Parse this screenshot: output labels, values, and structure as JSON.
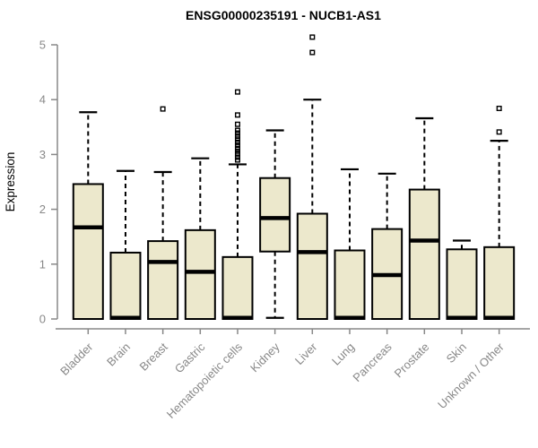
{
  "chart_data": {
    "type": "boxplot",
    "title": "ENSG00000235191 - NUCB1-AS1",
    "xlabel": "",
    "ylabel": "Expression",
    "ylim": [
      0,
      5.2
    ],
    "yticks": [
      0,
      1,
      2,
      3,
      4,
      5
    ],
    "grid": false,
    "legend": "none",
    "categories": [
      "Bladder",
      "Brain",
      "Breast",
      "Gastric",
      "Hematopoietic cells",
      "Kidney",
      "Liver",
      "Lung",
      "Pancreas",
      "Prostate",
      "Skin",
      "Unknown / Other"
    ],
    "series": [
      {
        "name": "Bladder",
        "whisker_low": 0,
        "q1": 0,
        "median": 1.67,
        "q3": 2.46,
        "whisker_high": 3.77,
        "outliers": []
      },
      {
        "name": "Brain",
        "whisker_low": 0,
        "q1": 0,
        "median": 0.02,
        "q3": 1.21,
        "whisker_high": 2.7,
        "outliers": []
      },
      {
        "name": "Breast",
        "whisker_low": 0,
        "q1": 0,
        "median": 1.04,
        "q3": 1.42,
        "whisker_high": 2.68,
        "outliers": [
          3.83
        ]
      },
      {
        "name": "Gastric",
        "whisker_low": 0,
        "q1": 0,
        "median": 0.86,
        "q3": 1.62,
        "whisker_high": 2.93,
        "outliers": []
      },
      {
        "name": "Hematopoietic cells",
        "whisker_low": 0,
        "q1": 0,
        "median": 0.02,
        "q3": 1.13,
        "whisker_high": 2.82,
        "outliers": [
          4.14,
          3.72,
          3.55,
          3.44,
          3.39,
          3.33,
          3.28,
          3.22,
          3.17,
          3.11,
          3.06,
          3.01,
          2.95,
          2.9
        ]
      },
      {
        "name": "Kidney",
        "whisker_low": 0.02,
        "q1": 1.23,
        "median": 1.84,
        "q3": 2.57,
        "whisker_high": 3.44,
        "outliers": []
      },
      {
        "name": "Liver",
        "whisker_low": 0,
        "q1": 0,
        "median": 1.22,
        "q3": 1.92,
        "whisker_high": 4.0,
        "outliers": [
          5.14,
          4.86
        ]
      },
      {
        "name": "Lung",
        "whisker_low": 0,
        "q1": 0,
        "median": 0.02,
        "q3": 1.25,
        "whisker_high": 2.73,
        "outliers": []
      },
      {
        "name": "Pancreas",
        "whisker_low": 0,
        "q1": 0,
        "median": 0.8,
        "q3": 1.64,
        "whisker_high": 2.65,
        "outliers": []
      },
      {
        "name": "Prostate",
        "whisker_low": 0,
        "q1": 0,
        "median": 1.43,
        "q3": 2.36,
        "whisker_high": 3.66,
        "outliers": []
      },
      {
        "name": "Skin",
        "whisker_low": 0,
        "q1": 0,
        "median": 0.02,
        "q3": 1.27,
        "whisker_high": 1.43,
        "outliers": []
      },
      {
        "name": "Unknown / Other",
        "whisker_low": 0,
        "q1": 0,
        "median": 0.02,
        "q3": 1.31,
        "whisker_high": 3.25,
        "outliers": [
          3.84,
          3.41
        ]
      }
    ],
    "colors": {
      "box_fill": "#ECE8CC",
      "box_border": "#000000",
      "median": "#000000",
      "whisker": "#000000",
      "outlier": "#000000",
      "axis": "#888888",
      "axis_text": "#888888",
      "title_text": "#000000",
      "background": "#ffffff"
    }
  }
}
